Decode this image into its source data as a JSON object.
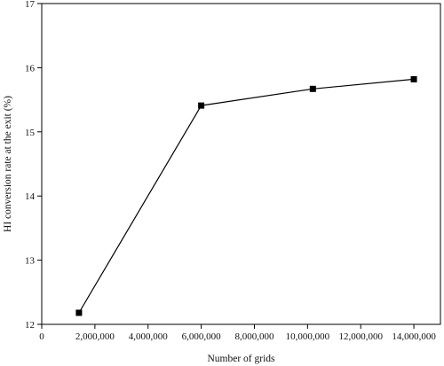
{
  "chart_data": {
    "type": "line",
    "xlabel": "Number of grids",
    "ylabel": "HI conversion rate at the exit (%)",
    "xlim": [
      0,
      15000000
    ],
    "ylim": [
      12,
      17
    ],
    "xticks": [
      0,
      2000000,
      4000000,
      6000000,
      8000000,
      10000000,
      12000000,
      14000000
    ],
    "xtick_labels": [
      "0",
      "2,000,000",
      "4,000,000",
      "6,000,000",
      "8,000,000",
      "10,000,000",
      "12,000,000",
      "14,000,000"
    ],
    "yticks": [
      12,
      13,
      14,
      15,
      16,
      17
    ],
    "ytick_labels": [
      "12",
      "13",
      "14",
      "15",
      "16",
      "17"
    ],
    "grid": false,
    "series": [
      {
        "x": [
          1400000,
          6000000,
          10200000,
          14000000
        ],
        "y": [
          12.18,
          15.41,
          15.67,
          15.82
        ],
        "marker": "square",
        "color": "#000000"
      }
    ]
  }
}
